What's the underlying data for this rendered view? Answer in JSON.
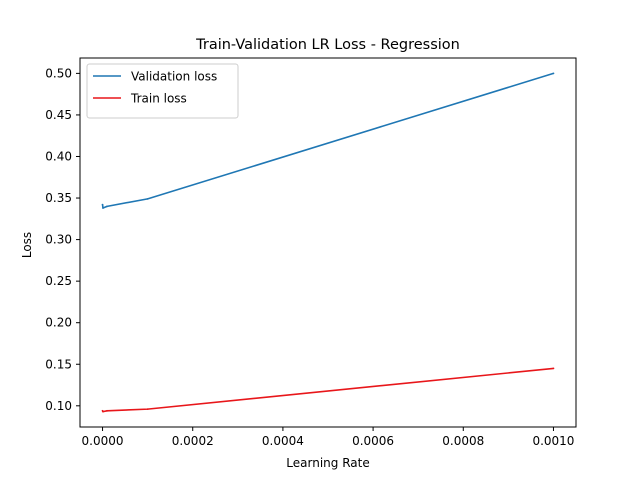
{
  "chart_data": {
    "type": "line",
    "title": "Train-Validation LR Loss - Regression",
    "xlabel": "Learning Rate",
    "ylabel": "Loss",
    "xlim": [
      -5e-05,
      0.00105
    ],
    "ylim": [
      0.0745,
      0.5185
    ],
    "x_ticks": [
      0.0,
      0.0002,
      0.0004,
      0.0006,
      0.0008,
      0.001
    ],
    "x_tick_labels": [
      "0.0000",
      "0.0002",
      "0.0004",
      "0.0006",
      "0.0008",
      "0.0010"
    ],
    "y_ticks": [
      0.1,
      0.15,
      0.2,
      0.25,
      0.3,
      0.35,
      0.4,
      0.45,
      0.5
    ],
    "y_tick_labels": [
      "0.10",
      "0.15",
      "0.20",
      "0.25",
      "0.30",
      "0.35",
      "0.40",
      "0.45",
      "0.50"
    ],
    "grid": false,
    "legend_position": "upper-left",
    "series": [
      {
        "name": "Validation loss",
        "color": "#1f77b4",
        "x": [
          0.0,
          1e-06,
          1e-05,
          0.0001,
          0.001
        ],
        "y": [
          0.342,
          0.338,
          0.34,
          0.349,
          0.5
        ]
      },
      {
        "name": "Train loss",
        "color": "#e8161a",
        "x": [
          0.0,
          1e-06,
          1e-05,
          0.0001,
          0.001
        ],
        "y": [
          0.094,
          0.093,
          0.094,
          0.096,
          0.145
        ]
      }
    ]
  }
}
